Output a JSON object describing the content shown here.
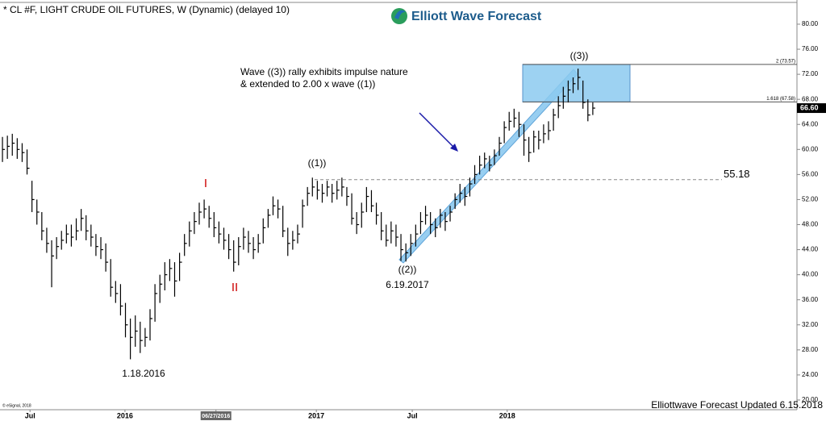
{
  "chart_data": {
    "type": "ohlc",
    "title": "* CL #F, LIGHT CRUDE OIL FUTURES, W (Dynamic) (delayed 10)",
    "logo": "Elliott Wave Forecast",
    "footer": "Elliottwave Forecast Updated 6.15.2018",
    "copyright": "© eSignal, 2018",
    "note": [
      "Wave ((3)) rally exhibits impulse nature",
      "& extended to 2.00 x wave ((1))"
    ],
    "color": "#000000",
    "high": [
      62,
      62.2,
      62.5,
      61.8,
      61,
      60,
      55,
      52,
      50,
      47.5,
      45.5,
      46,
      47,
      48,
      48,
      49,
      50.5,
      49.5,
      48,
      46.5,
      46,
      45,
      42.5,
      39,
      38.5,
      35.5,
      33,
      33.5,
      32.5,
      31.5,
      34.5,
      38.5,
      40,
      42,
      42.5,
      42,
      43.5,
      46.5,
      48.5,
      50,
      51.5,
      52,
      51,
      50,
      48.5,
      47.5,
      46.5,
      45.5,
      46,
      47.5,
      47,
      46,
      46.5,
      49,
      50.5,
      52.5,
      52,
      51,
      47.5,
      47,
      48,
      52,
      54,
      55.5,
      55,
      54.5,
      55,
      54.5,
      55,
      55.5,
      54,
      53,
      50,
      51.5,
      54,
      53.5,
      51.5,
      50,
      48,
      48.5,
      48,
      46.5,
      45,
      46.5,
      48,
      50,
      51,
      50,
      49,
      50.5,
      50,
      51,
      53,
      54.5,
      54,
      55.5,
      57.5,
      59,
      59.5,
      59,
      60,
      62,
      64.5,
      66,
      66.5,
      66,
      64,
      62,
      63,
      63,
      64,
      64.5,
      66.5,
      68.5,
      70,
      71,
      71.5,
      72.9,
      71,
      68,
      67.5
    ],
    "low": [
      58,
      58.5,
      59,
      58.5,
      58,
      56,
      50,
      48,
      45.5,
      43.5,
      38,
      42.5,
      44,
      45,
      44.5,
      45.5,
      47,
      45.5,
      44.5,
      43,
      42.5,
      40.5,
      36.5,
      35.5,
      33.5,
      30,
      26.5,
      28.5,
      27.5,
      28.5,
      29.5,
      32.5,
      35.5,
      37.5,
      39,
      36.5,
      39,
      43,
      44.5,
      46.5,
      48,
      49,
      47.5,
      46,
      45,
      44,
      42.5,
      40.5,
      41.5,
      44,
      43.5,
      42.5,
      43.5,
      45,
      47.5,
      49.5,
      49,
      46,
      43,
      44,
      45,
      47.5,
      51,
      52.5,
      52,
      51.5,
      52.5,
      51.5,
      52,
      52.5,
      51,
      48,
      46.5,
      47.5,
      50,
      50,
      48,
      45.5,
      44.5,
      45,
      44.5,
      42.2,
      42.1,
      43,
      44.5,
      46.5,
      48,
      46.5,
      46,
      47.5,
      47,
      48.5,
      50.5,
      51.5,
      51,
      52.5,
      54.5,
      56,
      57,
      56.5,
      57.5,
      59,
      61,
      63,
      63.5,
      62,
      59,
      58,
      59.5,
      60,
      61,
      61.5,
      63,
      65,
      66.5,
      67.5,
      69,
      69.5,
      66.5,
      64.5,
      65.5
    ],
    "close": [
      60,
      60.5,
      61,
      60,
      59.5,
      57,
      52,
      50,
      47,
      45,
      43,
      44.5,
      45.5,
      46.5,
      46,
      47,
      49,
      47,
      46,
      44.5,
      44,
      42,
      38,
      37,
      35,
      32,
      30,
      31,
      29.5,
      30,
      33,
      37,
      38.5,
      40,
      41,
      39,
      42,
      45,
      47,
      48.5,
      50,
      50.5,
      49,
      47.5,
      46.5,
      45.5,
      44,
      42,
      44.5,
      46,
      45,
      44,
      45,
      47.5,
      49.5,
      51,
      50.5,
      47,
      45,
      45.5,
      46.5,
      51,
      53,
      54,
      53.5,
      53,
      54,
      53,
      53.5,
      54,
      52.5,
      49,
      48,
      50,
      52.5,
      51,
      49.5,
      47,
      45.5,
      47,
      46,
      44,
      43.5,
      45,
      46.5,
      48.5,
      49.5,
      48,
      47.5,
      49.5,
      48.5,
      50,
      52,
      53,
      52.5,
      54.5,
      56,
      57.5,
      58.5,
      57.5,
      59,
      61,
      63.5,
      64.5,
      65,
      64,
      61.5,
      59.5,
      62,
      61.5,
      62.5,
      63,
      65.5,
      67,
      68.5,
      69.5,
      70.5,
      71.5,
      67.5,
      65.5,
      66.6
    ],
    "last": {
      "value": 66.6,
      "label": "66.60"
    },
    "xlim": [
      -0.5,
      161.5
    ],
    "xticks": [
      {
        "value": 5.6,
        "label": "Jul"
      },
      {
        "value": 24.9,
        "label": "2016"
      },
      {
        "value": 43.4,
        "label": "06/27/2016"
      },
      {
        "value": 63.8,
        "label": "2017"
      },
      {
        "value": 83.3,
        "label": "Jul"
      },
      {
        "value": 102.6,
        "label": "2018"
      }
    ],
    "ylim": [
      18.45,
      82.83
    ],
    "yticks": [
      {
        "value": 20,
        "label": "20.00"
      },
      {
        "value": 24,
        "label": "24.00"
      },
      {
        "value": 28,
        "label": "28.00"
      },
      {
        "value": 32,
        "label": "32.00"
      },
      {
        "value": 36,
        "label": "36.00"
      },
      {
        "value": 40,
        "label": "40.00"
      },
      {
        "value": 44,
        "label": "44.00"
      },
      {
        "value": 48,
        "label": "48.00"
      },
      {
        "value": 52,
        "label": "52.00"
      },
      {
        "value": 56,
        "label": "56.00"
      },
      {
        "value": 60,
        "label": "60.00"
      },
      {
        "value": 64,
        "label": "64.00"
      },
      {
        "value": 68,
        "label": "68.00"
      },
      {
        "value": 72,
        "label": "72.00"
      },
      {
        "value": 76,
        "label": "76.00"
      },
      {
        "value": 80,
        "label": "80.00"
      }
    ],
    "level": 55.18,
    "fib": [
      {
        "value": 73.57,
        "label": "2 (73.57)"
      },
      {
        "value": 67.58,
        "label": "1.618 (67.58)"
      }
    ],
    "waves": [
      {
        "label": "I",
        "color": "#cc0000"
      },
      {
        "label": "II",
        "color": "#cc0000"
      },
      {
        "label": "((1))",
        "color": "#000000"
      },
      {
        "label": "((2))",
        "color": "#000000"
      },
      {
        "label": "6.19.2017",
        "color": "#000000"
      },
      {
        "label": "((3))",
        "color": "#000000"
      },
      {
        "label": "1.18.2016",
        "color": "#000000"
      }
    ]
  }
}
